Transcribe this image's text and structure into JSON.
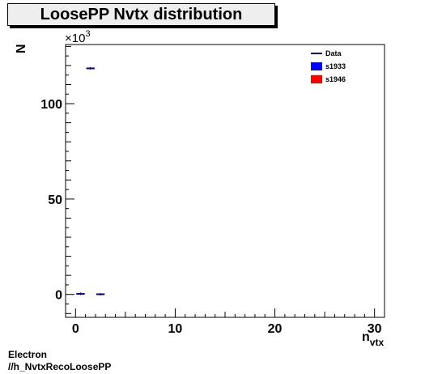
{
  "chart_data": {
    "type": "histogram",
    "title": "LoosePP Nvtx distribution",
    "ylabel": "N",
    "y_multiplier": "×10",
    "y_multiplier_exponent": "3",
    "xlabel_main": "n",
    "xlabel_sub": "vtx",
    "xlim": [
      -1,
      31
    ],
    "ylim": [
      -12,
      131
    ],
    "x_major_ticks": [
      0,
      10,
      20,
      30
    ],
    "y_major_ticks": [
      0,
      50,
      100
    ],
    "x_tick_labels": [
      "0",
      "10",
      "20",
      "30"
    ],
    "y_tick_labels": [
      "0",
      "50",
      "100"
    ],
    "grid": false,
    "legend_placement": "top-right",
    "series": [
      {
        "name": "Data",
        "style": "line-segments",
        "color": "#00008b",
        "bins": [
          {
            "x0": 0,
            "x1": 1,
            "y": 0.3
          },
          {
            "x0": 1,
            "x1": 2,
            "y": 118.5
          },
          {
            "x0": 2,
            "x1": 3,
            "y": 0.1
          }
        ]
      },
      {
        "name": "s1933",
        "style": "fill",
        "color": "#0000ff",
        "bins": []
      },
      {
        "name": "s1946",
        "style": "fill",
        "color": "#ff0000",
        "bins": []
      }
    ]
  },
  "footer": {
    "line1": "Electron",
    "line2": "//h_NvtxRecoLoosePP"
  }
}
